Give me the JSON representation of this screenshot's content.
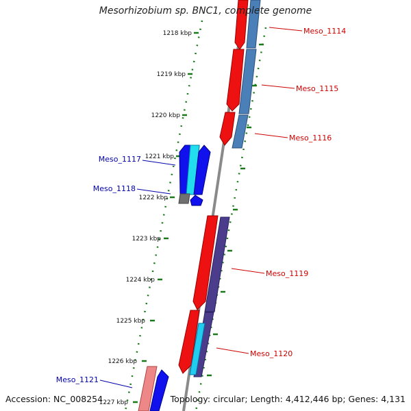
{
  "title": "Mesorhizobium sp. BNC1, complete genome",
  "footer": {
    "accession": "Accession: NC_008254",
    "summary": "Topology: circular; Length: 4,412,446 bp; Genes: 4,131"
  },
  "colors": {
    "forward_label": "#cc0000",
    "reverse_label": "#0000aa",
    "tick": "#1a7a1a",
    "backbone": "#8a8a8a"
  },
  "ticks": [
    "1218 kbp",
    "1219 kbp",
    "1220 kbp",
    "1221 kbp",
    "1222 kbp",
    "1223 kbp",
    "1224 kbp",
    "1225 kbp",
    "1226 kbp",
    "1227 kbp"
  ],
  "genes": [
    {
      "label": "Meso_1114",
      "strand": "forward"
    },
    {
      "label": "Meso_1115",
      "strand": "forward"
    },
    {
      "label": "Meso_1116",
      "strand": "forward"
    },
    {
      "label": "Meso_1117",
      "strand": "reverse"
    },
    {
      "label": "Meso_1118",
      "strand": "reverse"
    },
    {
      "label": "Meso_1119",
      "strand": "forward"
    },
    {
      "label": "Meso_1120",
      "strand": "forward"
    },
    {
      "label": "Meso_1121",
      "strand": "reverse"
    }
  ]
}
